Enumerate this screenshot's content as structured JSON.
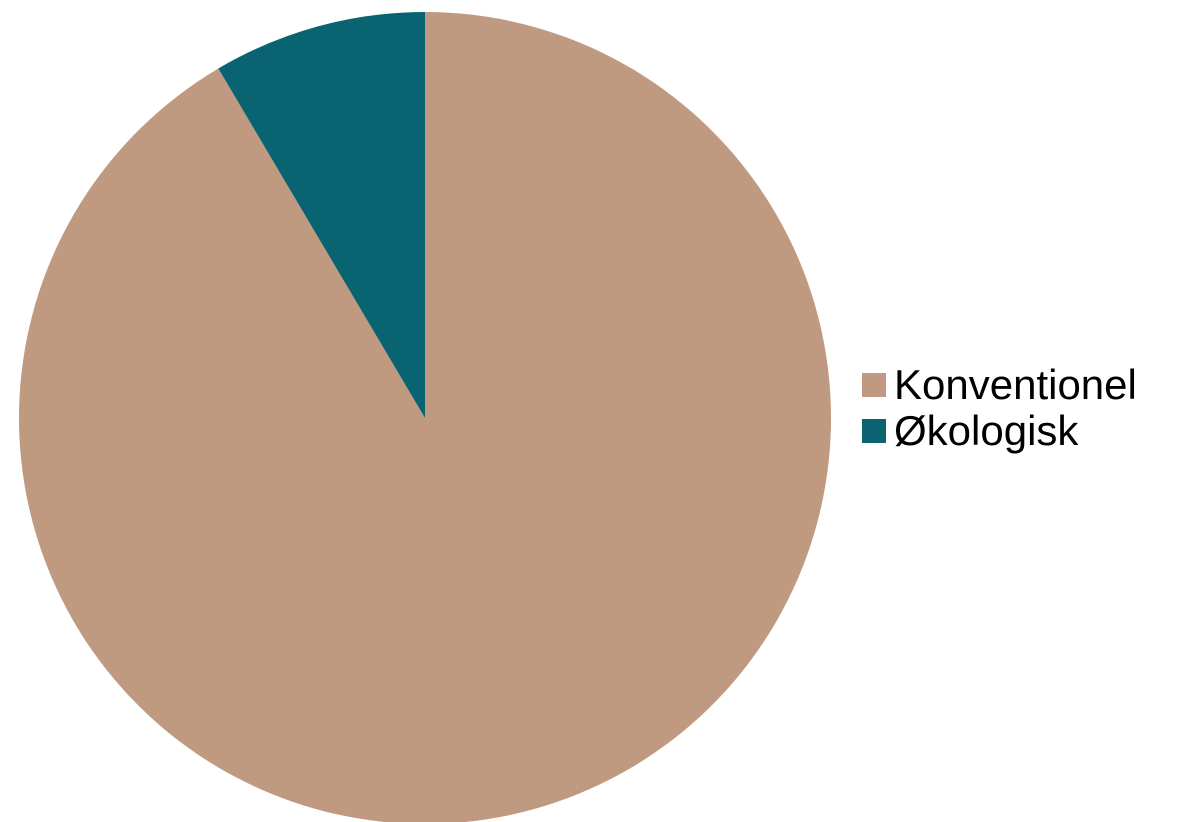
{
  "chart_data": {
    "type": "pie",
    "categories": [
      "Konventionel",
      "Økologisk"
    ],
    "values": [
      91.5,
      8.5
    ],
    "colors": [
      "#BF9A80",
      "#0A6371"
    ],
    "start_angle_deg": 0,
    "direction": "clockwise",
    "legend_position": "right",
    "title": ""
  },
  "legend": {
    "items": [
      {
        "label": "Konventionel",
        "color": "#BF9A80"
      },
      {
        "label": "Økologisk",
        "color": "#0A6371"
      }
    ]
  }
}
